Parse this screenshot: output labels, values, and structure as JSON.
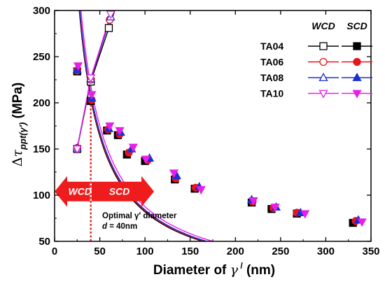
{
  "chart_data": {
    "type": "line",
    "xlabel_prefix": "Diameter of",
    "xlabel_symbol": "γ",
    "xlabel_prime": "/",
    "xlabel_suffix": "(nm)",
    "ylabel_prefix": "Δτ",
    "ylabel_sub": "ppt(γ′)",
    "ylabel_suffix": "(MPa)",
    "xlim": [
      0,
      350
    ],
    "ylim": [
      50,
      300
    ],
    "x_ticks": [
      "0",
      "50",
      "100",
      "150",
      "200",
      "250",
      "300",
      "350"
    ],
    "y_ticks": [
      "50",
      "100",
      "150",
      "200",
      "250",
      "300"
    ],
    "grid": false,
    "legend": {
      "placement": "top-right",
      "header_wcd": "WCD",
      "header_scd": "SCD",
      "entries": [
        {
          "label": "TA04",
          "color": "#000000",
          "wcd_marker": "square-open",
          "scd_marker": "square-filled"
        },
        {
          "label": "TA06",
          "color": "#e8141b",
          "wcd_marker": "circle-open",
          "scd_marker": "circle-filled"
        },
        {
          "label": "TA08",
          "color": "#1a2fd4",
          "wcd_marker": "triangle-up-open",
          "scd_marker": "triangle-up-filled"
        },
        {
          "label": "TA10",
          "color": "#e81ee8",
          "wcd_marker": "triangle-down-open",
          "scd_marker": "triangle-down-filled"
        }
      ]
    },
    "series": [
      {
        "name": "TA04",
        "regime": "WCD",
        "color": "#000000",
        "marker": "square-open",
        "x": [
          25,
          40,
          60
        ],
        "y": [
          150,
          223,
          281
        ]
      },
      {
        "name": "TA06",
        "regime": "WCD",
        "color": "#e8141b",
        "marker": "circle-open",
        "x": [
          25,
          40,
          61
        ],
        "y": [
          151,
          225,
          290
        ]
      },
      {
        "name": "TA08",
        "regime": "WCD",
        "color": "#1a2fd4",
        "marker": "triangle-up-open",
        "x": [
          25,
          40,
          62
        ],
        "y": [
          151,
          226,
          293
        ]
      },
      {
        "name": "TA10",
        "regime": "WCD",
        "color": "#e81ee8",
        "marker": "triangle-down-open",
        "x": [
          25,
          40,
          62
        ],
        "y": [
          150,
          227,
          296
        ]
      },
      {
        "name": "TA04",
        "regime": "SCD",
        "color": "#000000",
        "marker": "square-filled",
        "x": [
          25,
          40,
          58,
          70,
          80,
          100,
          133,
          155,
          218,
          240,
          268,
          330
        ],
        "y": [
          234,
          202,
          170,
          165,
          144,
          137,
          117,
          107,
          92,
          85,
          80,
          70
        ]
      },
      {
        "name": "TA06",
        "regime": "SCD",
        "color": "#e8141b",
        "marker": "circle-filled",
        "x": [
          25,
          41,
          59,
          72,
          82,
          103,
          134,
          156,
          219,
          242,
          268,
          333
        ],
        "y": [
          235,
          203,
          171,
          166,
          146,
          138,
          118,
          108,
          93,
          86,
          81,
          72
        ]
      },
      {
        "name": "TA08",
        "regime": "SCD",
        "color": "#1a2fd4",
        "marker": "triangle-up-filled",
        "x": [
          25,
          41,
          60,
          73,
          85,
          105,
          135,
          160,
          218,
          245,
          272,
          336
        ],
        "y": [
          236,
          205,
          172,
          168,
          150,
          140,
          121,
          109,
          95,
          87,
          81,
          73
        ]
      },
      {
        "name": "TA10",
        "regime": "SCD",
        "color": "#e81ee8",
        "marker": "triangle-down-filled",
        "x": [
          26,
          41,
          61,
          72,
          87,
          101,
          132,
          162,
          220,
          244,
          277,
          340
        ],
        "y": [
          240,
          209,
          175,
          170,
          152,
          139,
          124,
          106,
          94,
          87,
          80,
          71
        ]
      }
    ],
    "fit_curve": {
      "a": 8080,
      "exponent": -1
    },
    "annotations": {
      "optimal_line": {
        "x": 40,
        "color": "#e8141b"
      },
      "optimal_text_1": "Optimal γ′ diameter",
      "optimal_text_2": "d = 40nm",
      "wcd_arrow": {
        "label": "WCD",
        "x_from": 39,
        "x_to": 0,
        "y": 104,
        "color": "#ee1c1c"
      },
      "scd_arrow": {
        "label": "SCD",
        "x_from": 41,
        "x_to": 110,
        "y": 104,
        "color": "#ee1c1c"
      }
    }
  }
}
